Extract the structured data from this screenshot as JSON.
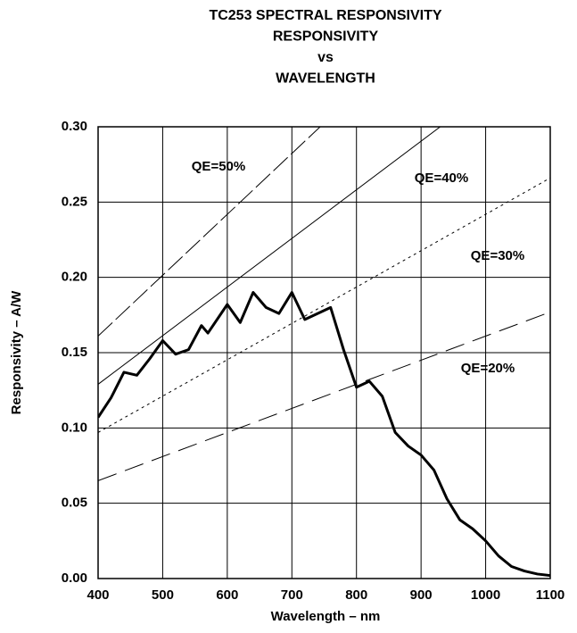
{
  "chart_data": {
    "type": "line",
    "title": [
      "TC253 SPECTRAL RESPONSIVITY",
      "RESPONSIVITY",
      "vs",
      "WAVELENGTH"
    ],
    "x_label": "Wavelength  – nm",
    "y_label": "Responsivity – A/W",
    "xlim": [
      400,
      1100
    ],
    "ylim": [
      0,
      0.3
    ],
    "xticks": [
      400,
      500,
      600,
      700,
      800,
      900,
      1000,
      1100
    ],
    "yticks": [
      {
        "value": 0,
        "label": "0.00"
      },
      {
        "value": 0.05,
        "label": "0.05"
      },
      {
        "value": 0.1,
        "label": "0.10"
      },
      {
        "value": 0.15,
        "label": "0.15"
      },
      {
        "value": 0.2,
        "label": "0.20"
      },
      {
        "value": 0.25,
        "label": "0.25"
      },
      {
        "value": 0.3,
        "label": "0.30"
      }
    ],
    "grid": true,
    "series": [
      {
        "color": "#000000",
        "x": [
          400,
          420,
          440,
          460,
          480,
          500,
          520,
          540,
          560,
          570,
          600,
          620,
          640,
          660,
          680,
          700,
          720,
          760,
          780,
          800,
          820,
          840,
          860,
          880,
          900,
          920,
          940,
          960,
          980,
          1000,
          1020,
          1040,
          1060,
          1080,
          1100
        ],
        "values": [
          0.107,
          0.12,
          0.137,
          0.135,
          0.146,
          0.158,
          0.149,
          0.152,
          0.168,
          0.163,
          0.182,
          0.17,
          0.19,
          0.18,
          0.176,
          0.19,
          0.172,
          0.18,
          0.152,
          0.127,
          0.131,
          0.121,
          0.097,
          0.088,
          0.082,
          0.072,
          0.053,
          0.039,
          0.033,
          0.025,
          0.015,
          0.008,
          0.005,
          0.003,
          0.002
        ]
      },
      {
        "name": "QE=50%",
        "color": "#000000",
        "x": [
          400,
          1100
        ],
        "values": [
          0.161,
          0.444
        ]
      },
      {
        "name": "QE=40%",
        "color": "#000000",
        "x": [
          400,
          1100
        ],
        "values": [
          0.129,
          0.355
        ]
      },
      {
        "name": "QE=30%",
        "color": "#000000",
        "x": [
          400,
          1100
        ],
        "values": [
          0.097,
          0.266
        ]
      },
      {
        "name": "QE=20%",
        "color": "#000000",
        "x": [
          400,
          1100
        ],
        "values": [
          0.065,
          0.177
        ]
      }
    ]
  }
}
